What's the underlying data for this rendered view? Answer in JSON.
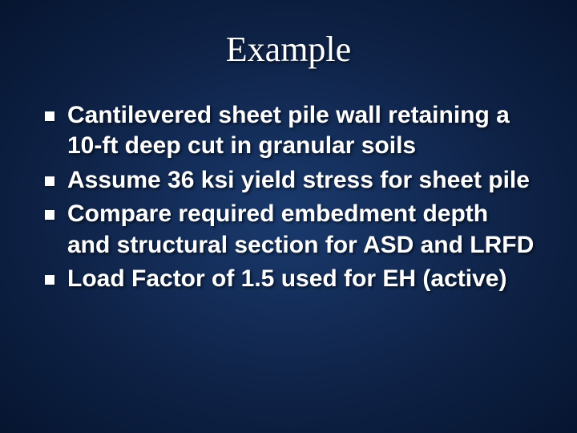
{
  "slide": {
    "title": "Example",
    "title_fontsize": 44,
    "title_font": "Georgia",
    "bullets": [
      "Cantilevered sheet pile wall retaining a 10-ft deep cut in granular soils",
      "Assume 36 ksi yield stress for sheet pile",
      "Compare required embedment depth and structural section for ASD and LRFD",
      "Load Factor of 1.5 used for EH (active)"
    ],
    "bullet_fontsize": 30,
    "bullet_fontweight": "bold",
    "bullet_marker_color": "#ffffff",
    "bullet_marker_size": 12,
    "text_color": "#ffffff",
    "background_gradient": {
      "type": "radial",
      "center_color": "#1a3a6e",
      "mid_color": "#0f2348",
      "edge_color": "#061530"
    },
    "text_shadow": "2px 2px 3px rgba(0,0,0,0.6)"
  }
}
